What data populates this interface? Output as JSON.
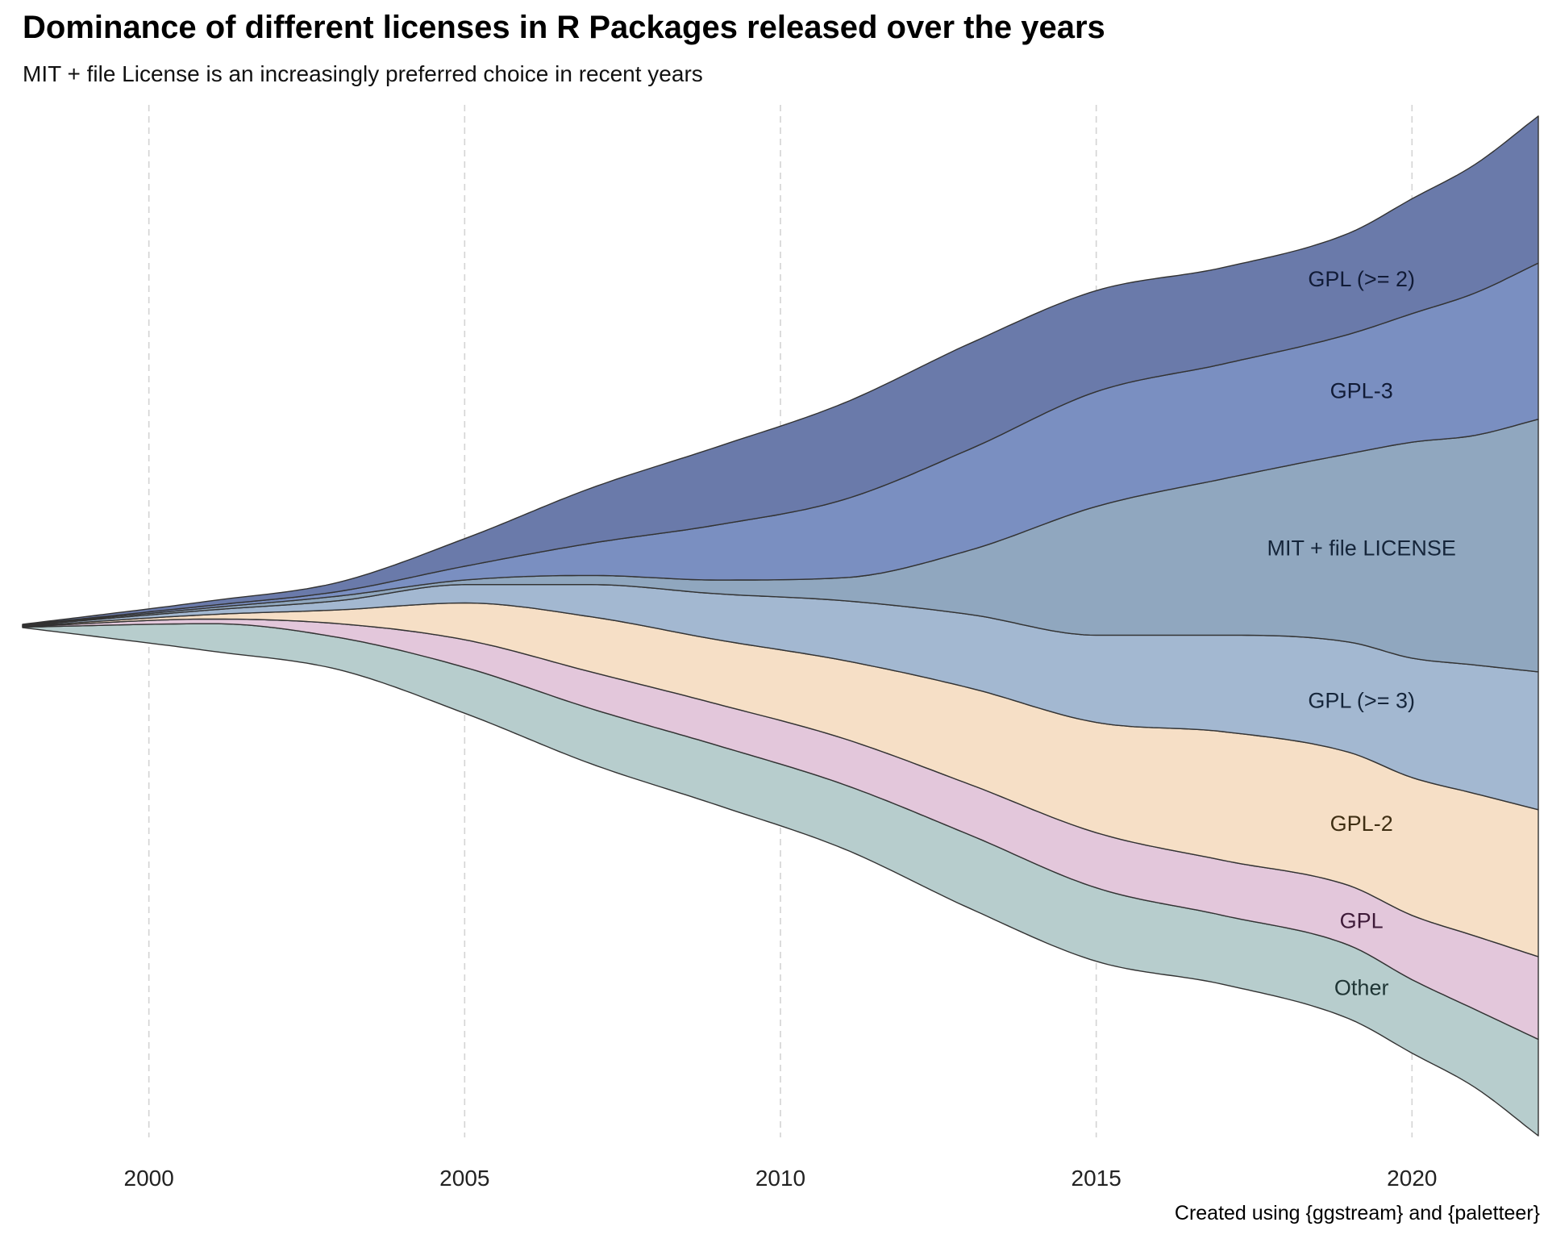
{
  "title": "Dominance of different licenses in R Packages released over the years",
  "subtitle": "MIT + file License is an increasingly preferred choice in recent years",
  "caption": "Created using {ggstream} and {paletteer}",
  "chart_data": {
    "type": "area",
    "subtype": "streamgraph",
    "xlabel": "",
    "ylabel": "",
    "xlim": [
      1998,
      2022
    ],
    "x_ticks": [
      2000,
      2005,
      2010,
      2015,
      2020
    ],
    "grid": "vertical dashed",
    "legend": "none (direct labels)",
    "x": [
      1998,
      2001,
      2003,
      2005,
      2007,
      2009,
      2011,
      2013,
      2015,
      2017,
      2019,
      2020,
      2021,
      2022
    ],
    "series": [
      {
        "name": "Other",
        "color": "#b7cdcd",
        "text_color": "#1f3535",
        "values": [
          0.1,
          6,
          7,
          10,
          12,
          13,
          14,
          16,
          16,
          15,
          16,
          16,
          17,
          21
        ]
      },
      {
        "name": "GPL",
        "color": "#e3c7db",
        "text_color": "#3e1a38",
        "values": [
          0.1,
          1,
          3,
          6,
          8,
          9,
          10,
          11,
          12,
          12,
          13,
          14,
          16,
          18
        ]
      },
      {
        "name": "GPL-2",
        "color": "#f6dfc6",
        "text_color": "#3e2e12",
        "values": [
          0.1,
          1,
          3,
          8,
          12,
          14,
          17,
          21,
          24,
          28,
          29,
          30,
          31,
          32
        ]
      },
      {
        "name": "GPL (>= 3)",
        "color": "#a3b8d1",
        "text_color": "#15253a",
        "values": [
          0.1,
          1,
          2,
          4,
          7,
          10,
          13,
          16,
          19,
          21,
          24,
          26,
          28,
          30
        ]
      },
      {
        "name": "MIT + file LICENSE",
        "color": "#90a7bf",
        "text_color": "#15253a",
        "values": [
          0.1,
          0.5,
          1,
          1,
          2,
          3,
          5,
          14,
          28,
          34,
          41,
          47,
          50,
          55
        ]
      },
      {
        "name": "GPL-3",
        "color": "#7a8fc1",
        "text_color": "#111b36",
        "values": [
          0.1,
          0.5,
          1,
          3,
          7,
          12,
          17,
          22,
          25,
          25,
          26,
          28,
          31,
          34
        ]
      },
      {
        "name": "GPL (>= 2)",
        "color": "#6a7aaa",
        "text_color": "#111b36",
        "values": [
          0.1,
          1,
          2,
          6,
          12,
          17,
          21,
          23,
          22,
          21,
          22,
          25,
          28,
          32
        ]
      }
    ]
  }
}
